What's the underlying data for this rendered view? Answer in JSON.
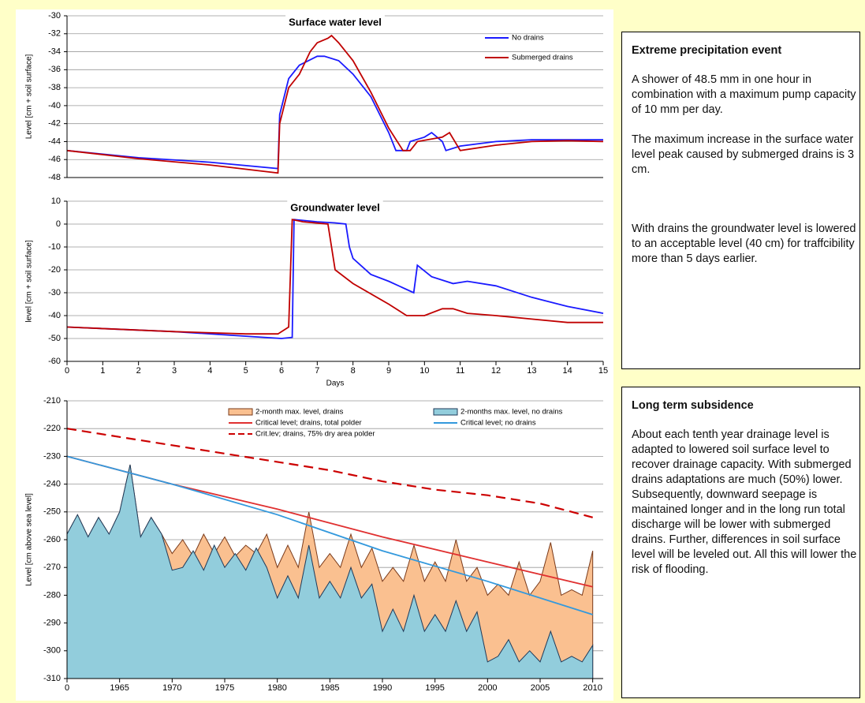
{
  "chart_data": [
    {
      "type": "line",
      "title": "Surface water level",
      "ylabel": "Level [cm + soil surface]",
      "xlim": [
        0,
        15
      ],
      "ylim": [
        -48,
        -30
      ],
      "yticks": [
        -30,
        -32,
        -34,
        -36,
        -38,
        -40,
        -42,
        -44,
        -46,
        -48
      ],
      "grid": true,
      "legend": "upper right",
      "series": [
        {
          "name": "No drains",
          "color": "#1a1aff",
          "kind": "line",
          "x": [
            0,
            2,
            4,
            5.9,
            5.95,
            6.2,
            6.5,
            7,
            7.2,
            7.6,
            8,
            8.5,
            9,
            9.2,
            9.5,
            9.6,
            10,
            10.2,
            10.5,
            10.6,
            11,
            12,
            13,
            14,
            15
          ],
          "values": [
            -45,
            -45.8,
            -46.3,
            -47,
            -41,
            -37,
            -35.5,
            -34.5,
            -34.5,
            -35,
            -36.5,
            -39,
            -43,
            -45,
            -45,
            -44,
            -43.5,
            -43,
            -44,
            -45,
            -44.5,
            -44,
            -43.8,
            -43.8,
            -43.8
          ]
        },
        {
          "name": "Submerged drains",
          "color": "#c00000",
          "kind": "line",
          "x": [
            0,
            2,
            4,
            5.9,
            5.95,
            6.2,
            6.5,
            6.8,
            7,
            7.3,
            7.4,
            7.6,
            8,
            8.5,
            9,
            9.4,
            9.6,
            9.8,
            10.5,
            10.7,
            11,
            12,
            13,
            14,
            15
          ],
          "values": [
            -45,
            -45.9,
            -46.6,
            -47.5,
            -42,
            -38,
            -36.5,
            -34,
            -33,
            -32.5,
            -32.2,
            -33,
            -35,
            -38.5,
            -42.5,
            -45,
            -45,
            -44,
            -43.5,
            -43,
            -45,
            -44.4,
            -44,
            -43.9,
            -44
          ]
        }
      ]
    },
    {
      "type": "line",
      "title": "Groundwater level",
      "ylabel": "level [cm + soil surface]",
      "xlabel": "Days",
      "xlim": [
        0,
        15
      ],
      "xticks": [
        0,
        1,
        2,
        3,
        4,
        5,
        6,
        7,
        8,
        9,
        10,
        11,
        12,
        13,
        14,
        15
      ],
      "ylim": [
        -60,
        10
      ],
      "yticks": [
        10,
        0,
        -10,
        -20,
        -30,
        -40,
        -50,
        -60
      ],
      "grid": true,
      "series": [
        {
          "color": "#1a1aff",
          "kind": "line",
          "x": [
            0,
            3,
            5,
            6,
            6.3,
            6.35,
            7,
            7.5,
            7.8,
            7.9,
            8,
            8.5,
            9,
            9.7,
            9.8,
            10.2,
            10.8,
            11.2,
            12,
            13,
            14,
            15
          ],
          "values": [
            -45,
            -47,
            -49,
            -50,
            -49.5,
            2,
            1,
            0.5,
            0,
            -10,
            -15,
            -22,
            -25,
            -30,
            -18,
            -23,
            -26,
            -25,
            -27,
            -32,
            -36,
            -39
          ]
        },
        {
          "color": "#c00000",
          "kind": "line",
          "x": [
            0,
            3,
            5,
            5.9,
            6.2,
            6.3,
            6.6,
            7.3,
            7.5,
            8,
            9,
            9.5,
            10,
            10.5,
            10.8,
            11.2,
            12,
            13,
            14,
            15
          ],
          "values": [
            -45,
            -47,
            -48,
            -48,
            -45,
            2,
            1,
            0,
            -20,
            -26,
            -35,
            -40,
            -40,
            -37,
            -37,
            -39,
            -40,
            -41.5,
            -43,
            -43
          ]
        }
      ]
    },
    {
      "type": "line",
      "ylabel": "Level [cm above sea level]",
      "xlim": [
        1960,
        2011
      ],
      "xticks": [
        {
          "value": 1960,
          "label": "0"
        },
        1965,
        1970,
        1975,
        1980,
        1985,
        1990,
        1995,
        2000,
        2005,
        2010
      ],
      "ylim": [
        -310,
        -210
      ],
      "yticks": [
        -210,
        -220,
        -230,
        -240,
        -250,
        -260,
        -270,
        -280,
        -290,
        -300,
        -310
      ],
      "grid": true,
      "legend": "top",
      "series": [
        {
          "name": "2-month max. level, drains",
          "color": "#fac090",
          "edge": "#7a3a1a",
          "kind": "area",
          "x": [
            1960,
            1961,
            1962,
            1963,
            1964,
            1965,
            1966,
            1967,
            1968,
            1969,
            1970,
            1971,
            1972,
            1973,
            1974,
            1975,
            1976,
            1977,
            1978,
            1979,
            1980,
            1981,
            1982,
            1983,
            1984,
            1985,
            1986,
            1987,
            1988,
            1989,
            1990,
            1991,
            1992,
            1993,
            1994,
            1995,
            1996,
            1997,
            1998,
            1999,
            2000,
            2001,
            2002,
            2003,
            2004,
            2005,
            2006,
            2007,
            2008,
            2009,
            2010
          ],
          "values": [
            -258,
            -251,
            -259,
            -252,
            -258,
            -250,
            -233,
            -259,
            -252,
            -258,
            -265,
            -260,
            -266,
            -258,
            -265,
            -259,
            -266,
            -262,
            -265,
            -258,
            -270,
            -262,
            -270,
            -250,
            -270,
            -265,
            -270,
            -258,
            -270,
            -263,
            -275,
            -270,
            -275,
            -262,
            -275,
            -268,
            -275,
            -260,
            -275,
            -270,
            -280,
            -276,
            -280,
            -268,
            -280,
            -275,
            -261,
            -280,
            -278,
            -280,
            -264
          ]
        },
        {
          "name": "2-months max. level, no drains",
          "color": "#92cddc",
          "edge": "#1f3a5a",
          "kind": "area",
          "x": [
            1960,
            1961,
            1962,
            1963,
            1964,
            1965,
            1966,
            1967,
            1968,
            1969,
            1970,
            1971,
            1972,
            1973,
            1974,
            1975,
            1976,
            1977,
            1978,
            1979,
            1980,
            1981,
            1982,
            1983,
            1984,
            1985,
            1986,
            1987,
            1988,
            1989,
            1990,
            1991,
            1992,
            1993,
            1994,
            1995,
            1996,
            1997,
            1998,
            1999,
            2000,
            2001,
            2002,
            2003,
            2004,
            2005,
            2006,
            2007,
            2008,
            2009,
            2010
          ],
          "values": [
            -258,
            -251,
            -259,
            -252,
            -258,
            -250,
            -233,
            -259,
            -252,
            -258,
            -271,
            -270,
            -264,
            -271,
            -262,
            -270,
            -265,
            -271,
            -263,
            -270,
            -281,
            -273,
            -281,
            -262,
            -281,
            -275,
            -281,
            -270,
            -281,
            -276,
            -293,
            -285,
            -293,
            -280,
            -293,
            -287,
            -293,
            -282,
            -293,
            -286,
            -304,
            -302,
            -296,
            -304,
            -300,
            -304,
            -293,
            -304,
            -302,
            -304,
            -298
          ]
        },
        {
          "name": "Critical level; drains, total polder",
          "color": "#e03030",
          "kind": "line",
          "x": [
            1960,
            1970,
            1980,
            1990,
            2000,
            2010
          ],
          "values": [
            -230,
            -240,
            -249,
            -259,
            -268,
            -277
          ]
        },
        {
          "name": "Critical level; no drains",
          "color": "#3399dd",
          "kind": "line",
          "x": [
            1960,
            1970,
            1980,
            1990,
            2000,
            2010
          ],
          "values": [
            -230,
            -240,
            -251,
            -264,
            -275,
            -287
          ]
        },
        {
          "name": "Crit.lev; drains, 75% dry area polder",
          "color": "#cc0000",
          "kind": "line",
          "dashed": true,
          "x": [
            1960,
            1965,
            1970,
            1975,
            1980,
            1985,
            1990,
            1995,
            2000,
            2005,
            2010
          ],
          "values": [
            -220,
            -223,
            -226,
            -229,
            -232,
            -235,
            -239,
            -242,
            -244,
            -247,
            -252
          ]
        }
      ]
    }
  ],
  "text_boxes": [
    {
      "title": "Extreme precipitation event",
      "paragraphs": [
        "A shower of 48.5 mm in one hour in combination with a maximum pump capacity of 10 mm per day.",
        "The maximum increase in the surface water level peak  caused by submerged drains is 3 cm.",
        "With drains the groundwater level is lowered to an acceptable level (40 cm) for traffcibility more than 5 days earlier."
      ]
    },
    {
      "title": "Long term subsidence",
      "paragraphs": [
        "About each tenth year drainage level is adapted to lowered soil surface level to recover drainage capacity. With submerged drains adaptations are much (50%) lower. Subsequently, downward seepage is maintained longer and in the long run total discharge will be lower with submerged drains. Further, differences in soil surface level will be leveled out. All this will lower the risk of flooding."
      ]
    }
  ]
}
